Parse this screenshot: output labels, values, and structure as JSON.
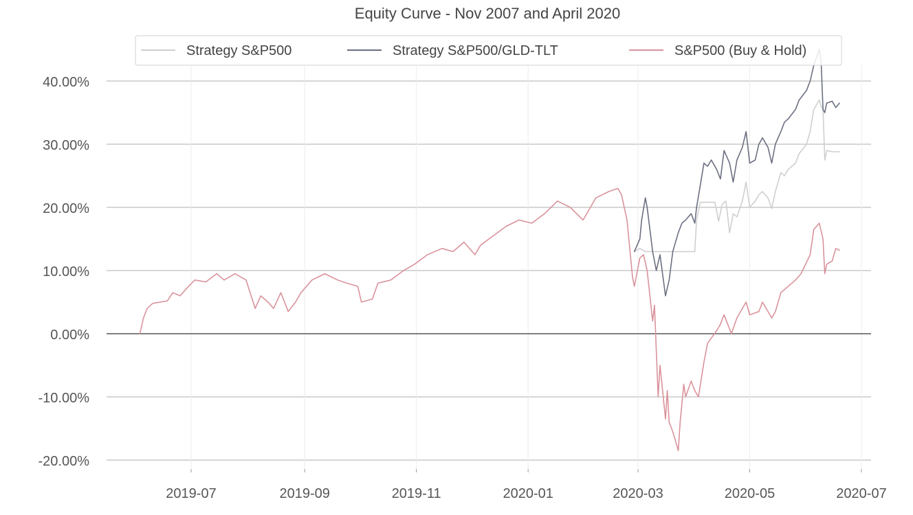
{
  "chart_data": {
    "type": "line",
    "title": "Equity Curve - Nov 2007 and April 2020",
    "xlabel": "",
    "ylabel": "",
    "x_ticks": [
      "2019-07",
      "2019-09",
      "2019-11",
      "2020-01",
      "2020-03",
      "2020-05",
      "2020-07"
    ],
    "y_ticks": [
      40,
      30,
      20,
      10,
      0,
      -10,
      -20
    ],
    "y_tick_labels": [
      "40.00%",
      "30.00%",
      "20.00%",
      "10.00%",
      "0.00%",
      "-10.00%",
      "-20.00%"
    ],
    "xlim": [
      "2019-05-20",
      "2020-07-08"
    ],
    "ylim": [
      -21,
      46
    ],
    "grid": true,
    "legend_position": "top-center",
    "series": [
      {
        "name": "Strategy S&P500",
        "color": "#cfcfcf",
        "points": [
          [
            "2020-02-28",
            13.0
          ],
          [
            "2020-03-02",
            13.5
          ],
          [
            "2020-03-05",
            13.0
          ],
          [
            "2020-03-20",
            13.0
          ],
          [
            "2020-04-01",
            13.0
          ],
          [
            "2020-04-02",
            18.0
          ],
          [
            "2020-04-04",
            20.8
          ],
          [
            "2020-04-12",
            20.8
          ],
          [
            "2020-04-14",
            17.8
          ],
          [
            "2020-04-16",
            20.5
          ],
          [
            "2020-04-18",
            21.0
          ],
          [
            "2020-04-20",
            16.0
          ],
          [
            "2020-04-22",
            19.0
          ],
          [
            "2020-04-24",
            18.5
          ],
          [
            "2020-04-27",
            21.0
          ],
          [
            "2020-04-29",
            24.0
          ],
          [
            "2020-05-01",
            20.0
          ],
          [
            "2020-05-04",
            21.0
          ],
          [
            "2020-05-06",
            22.0
          ],
          [
            "2020-05-08",
            22.5
          ],
          [
            "2020-05-11",
            21.5
          ],
          [
            "2020-05-13",
            19.8
          ],
          [
            "2020-05-15",
            22.5
          ],
          [
            "2020-05-18",
            25.5
          ],
          [
            "2020-05-20",
            25.0
          ],
          [
            "2020-05-22",
            26.0
          ],
          [
            "2020-05-26",
            27.0
          ],
          [
            "2020-05-28",
            28.5
          ],
          [
            "2020-06-01",
            30.0
          ],
          [
            "2020-06-03",
            32.0
          ],
          [
            "2020-06-05",
            35.5
          ],
          [
            "2020-06-08",
            37.0
          ],
          [
            "2020-06-09",
            36.0
          ],
          [
            "2020-06-10",
            35.5
          ],
          [
            "2020-06-11",
            27.5
          ],
          [
            "2020-06-12",
            29.0
          ],
          [
            "2020-06-15",
            28.8
          ],
          [
            "2020-06-19",
            28.8
          ]
        ]
      },
      {
        "name": "Strategy S&P500/GLD-TLT",
        "color": "#6b6f80",
        "points": [
          [
            "2020-02-28",
            13.0
          ],
          [
            "2020-03-02",
            15.0
          ],
          [
            "2020-03-03",
            18.0
          ],
          [
            "2020-03-05",
            21.5
          ],
          [
            "2020-03-06",
            20.0
          ],
          [
            "2020-03-09",
            13.0
          ],
          [
            "2020-03-11",
            10.0
          ],
          [
            "2020-03-13",
            12.5
          ],
          [
            "2020-03-16",
            6.0
          ],
          [
            "2020-03-18",
            8.5
          ],
          [
            "2020-03-20",
            13.0
          ],
          [
            "2020-03-23",
            16.0
          ],
          [
            "2020-03-25",
            17.5
          ],
          [
            "2020-03-27",
            18.0
          ],
          [
            "2020-03-30",
            19.0
          ],
          [
            "2020-04-01",
            17.5
          ],
          [
            "2020-04-02",
            20.0
          ],
          [
            "2020-04-04",
            23.5
          ],
          [
            "2020-04-06",
            27.0
          ],
          [
            "2020-04-08",
            26.5
          ],
          [
            "2020-04-10",
            27.5
          ],
          [
            "2020-04-13",
            26.0
          ],
          [
            "2020-04-15",
            24.5
          ],
          [
            "2020-04-17",
            29.0
          ],
          [
            "2020-04-20",
            27.0
          ],
          [
            "2020-04-22",
            24.0
          ],
          [
            "2020-04-24",
            27.5
          ],
          [
            "2020-04-27",
            29.5
          ],
          [
            "2020-04-29",
            32.0
          ],
          [
            "2020-05-01",
            27.0
          ],
          [
            "2020-05-04",
            27.5
          ],
          [
            "2020-05-06",
            30.0
          ],
          [
            "2020-05-08",
            31.0
          ],
          [
            "2020-05-11",
            29.5
          ],
          [
            "2020-05-13",
            27.0
          ],
          [
            "2020-05-15",
            30.0
          ],
          [
            "2020-05-18",
            32.0
          ],
          [
            "2020-05-20",
            33.5
          ],
          [
            "2020-05-22",
            34.0
          ],
          [
            "2020-05-26",
            35.5
          ],
          [
            "2020-05-28",
            37.0
          ],
          [
            "2020-06-01",
            38.5
          ],
          [
            "2020-06-03",
            40.0
          ],
          [
            "2020-06-05",
            42.5
          ],
          [
            "2020-06-08",
            45.0
          ],
          [
            "2020-06-09",
            43.0
          ],
          [
            "2020-06-10",
            35.5
          ],
          [
            "2020-06-11",
            35.0
          ],
          [
            "2020-06-12",
            36.5
          ],
          [
            "2020-06-15",
            36.8
          ],
          [
            "2020-06-17",
            35.8
          ],
          [
            "2020-06-19",
            36.5
          ]
        ]
      },
      {
        "name": "S&P500 (Buy & Hold)",
        "color": "#d9929b",
        "points": [
          [
            "2019-06-03",
            0.0
          ],
          [
            "2019-06-05",
            2.5
          ],
          [
            "2019-06-07",
            4.0
          ],
          [
            "2019-06-10",
            4.8
          ],
          [
            "2019-06-14",
            5.0
          ],
          [
            "2019-06-18",
            5.2
          ],
          [
            "2019-06-21",
            6.5
          ],
          [
            "2019-06-25",
            6.0
          ],
          [
            "2019-06-28",
            7.0
          ],
          [
            "2019-07-03",
            8.5
          ],
          [
            "2019-07-09",
            8.2
          ],
          [
            "2019-07-15",
            9.5
          ],
          [
            "2019-07-19",
            8.5
          ],
          [
            "2019-07-25",
            9.5
          ],
          [
            "2019-07-31",
            8.5
          ],
          [
            "2019-08-05",
            4.0
          ],
          [
            "2019-08-08",
            6.0
          ],
          [
            "2019-08-12",
            5.0
          ],
          [
            "2019-08-15",
            4.0
          ],
          [
            "2019-08-19",
            6.5
          ],
          [
            "2019-08-23",
            3.5
          ],
          [
            "2019-08-27",
            5.0
          ],
          [
            "2019-08-30",
            6.5
          ],
          [
            "2019-09-05",
            8.5
          ],
          [
            "2019-09-12",
            9.5
          ],
          [
            "2019-09-19",
            8.5
          ],
          [
            "2019-09-24",
            8.0
          ],
          [
            "2019-09-30",
            7.5
          ],
          [
            "2019-10-02",
            5.0
          ],
          [
            "2019-10-08",
            5.5
          ],
          [
            "2019-10-11",
            8.0
          ],
          [
            "2019-10-18",
            8.5
          ],
          [
            "2019-10-25",
            10.0
          ],
          [
            "2019-10-31",
            11.0
          ],
          [
            "2019-11-07",
            12.5
          ],
          [
            "2019-11-15",
            13.5
          ],
          [
            "2019-11-21",
            13.0
          ],
          [
            "2019-11-27",
            14.5
          ],
          [
            "2019-12-03",
            12.5
          ],
          [
            "2019-12-06",
            14.0
          ],
          [
            "2019-12-13",
            15.5
          ],
          [
            "2019-12-20",
            17.0
          ],
          [
            "2019-12-27",
            18.0
          ],
          [
            "2020-01-03",
            17.5
          ],
          [
            "2020-01-10",
            19.0
          ],
          [
            "2020-01-17",
            21.0
          ],
          [
            "2020-01-24",
            20.0
          ],
          [
            "2020-01-31",
            18.0
          ],
          [
            "2020-02-03",
            19.5
          ],
          [
            "2020-02-07",
            21.5
          ],
          [
            "2020-02-14",
            22.5
          ],
          [
            "2020-02-19",
            23.0
          ],
          [
            "2020-02-21",
            22.0
          ],
          [
            "2020-02-24",
            18.0
          ],
          [
            "2020-02-27",
            9.0
          ],
          [
            "2020-02-28",
            7.5
          ],
          [
            "2020-03-02",
            12.0
          ],
          [
            "2020-03-04",
            12.5
          ],
          [
            "2020-03-06",
            10.0
          ],
          [
            "2020-03-09",
            2.0
          ],
          [
            "2020-03-10",
            4.5
          ],
          [
            "2020-03-12",
            -10.0
          ],
          [
            "2020-03-13",
            -5.0
          ],
          [
            "2020-03-16",
            -13.5
          ],
          [
            "2020-03-17",
            -9.0
          ],
          [
            "2020-03-18",
            -14.0
          ],
          [
            "2020-03-20",
            -15.5
          ],
          [
            "2020-03-23",
            -18.5
          ],
          [
            "2020-03-24",
            -14.0
          ],
          [
            "2020-03-26",
            -8.0
          ],
          [
            "2020-03-27",
            -10.0
          ],
          [
            "2020-03-30",
            -7.5
          ],
          [
            "2020-04-01",
            -9.0
          ],
          [
            "2020-04-03",
            -10.0
          ],
          [
            "2020-04-06",
            -4.5
          ],
          [
            "2020-04-08",
            -1.5
          ],
          [
            "2020-04-13",
            0.5
          ],
          [
            "2020-04-15",
            1.5
          ],
          [
            "2020-04-17",
            3.0
          ],
          [
            "2020-04-21",
            0.0
          ],
          [
            "2020-04-24",
            2.5
          ],
          [
            "2020-04-29",
            5.0
          ],
          [
            "2020-05-01",
            3.0
          ],
          [
            "2020-05-06",
            3.5
          ],
          [
            "2020-05-08",
            5.0
          ],
          [
            "2020-05-13",
            2.5
          ],
          [
            "2020-05-15",
            3.5
          ],
          [
            "2020-05-18",
            6.5
          ],
          [
            "2020-05-20",
            7.0
          ],
          [
            "2020-05-26",
            8.5
          ],
          [
            "2020-05-29",
            9.5
          ],
          [
            "2020-06-03",
            12.5
          ],
          [
            "2020-06-05",
            16.5
          ],
          [
            "2020-06-08",
            17.5
          ],
          [
            "2020-06-10",
            15.0
          ],
          [
            "2020-06-11",
            9.5
          ],
          [
            "2020-06-12",
            11.0
          ],
          [
            "2020-06-15",
            11.5
          ],
          [
            "2020-06-17",
            13.5
          ],
          [
            "2020-06-19",
            13.2
          ]
        ]
      }
    ]
  }
}
